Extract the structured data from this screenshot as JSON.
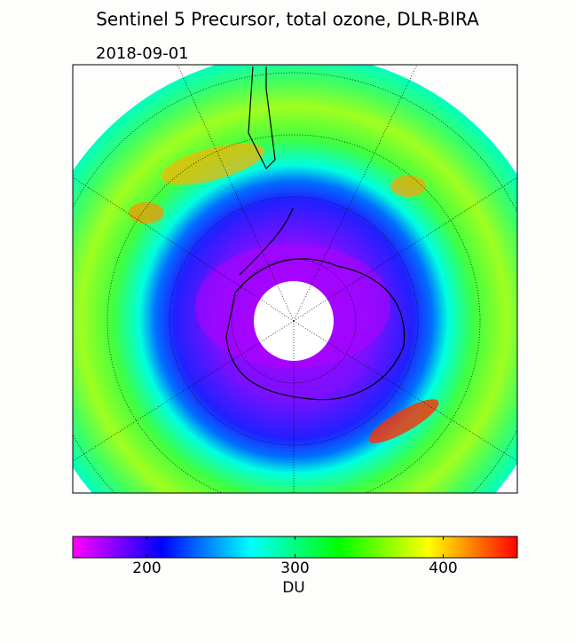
{
  "title": "Sentinel 5 Precursor, total ozone, DLR-BIRA",
  "date": "2018-09-01",
  "colorbar": {
    "lim": [
      150,
      450
    ],
    "ticks": [
      200,
      300,
      400
    ],
    "label": "DU",
    "colors": [
      "#ff00ff",
      "#8000ff",
      "#0000ff",
      "#0080ff",
      "#00ffff",
      "#00ff80",
      "#00ff00",
      "#80ff00",
      "#ffff00",
      "#ff8000",
      "#ff0000"
    ]
  }
}
